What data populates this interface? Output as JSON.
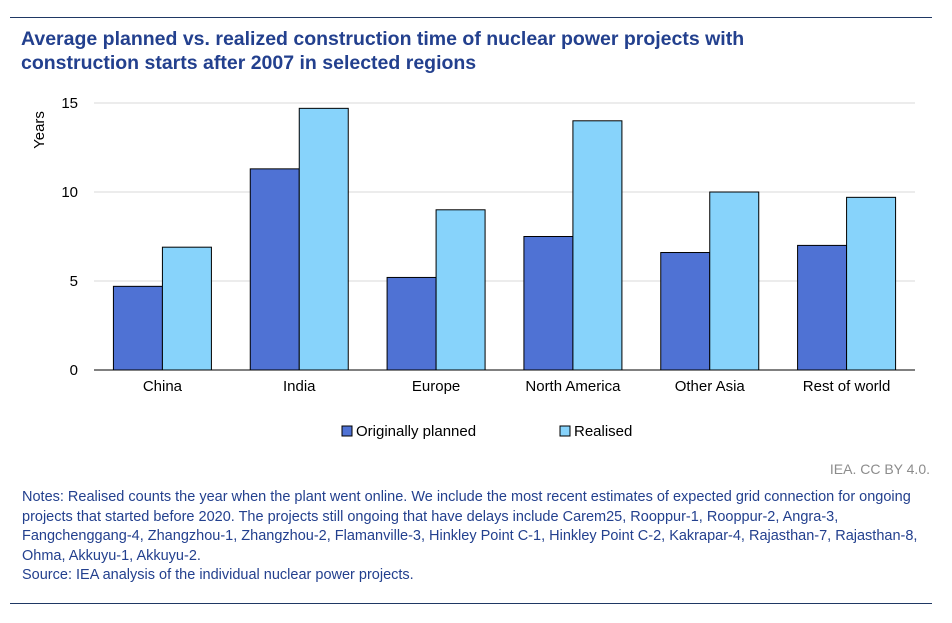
{
  "title_lines": [
    "Average planned vs. realized construction time of nuclear power projects with",
    "construction starts after 2007 in selected regions"
  ],
  "credit": "IEA. CC BY 4.0.",
  "notes": "Notes: Realised counts the year when the plant went online. We include the most recent estimates of expected grid connection for ongoing projects that started before 2020. The projects still ongoing that have delays include Carem25, Rooppur-1, Rooppur-2, Angra-3, Fangchenggang-4, Zhangzhou-1, Zhangzhou-2, Flamanville-3, Hinkley Point C-1, Hinkley Point C-2, Kakrapar-4, Rajasthan-7, Rajasthan-8, Ohma, Akkuyu-1, Akkuyu-2.",
  "source": "Source: IEA analysis of the individual nuclear power projects.",
  "colors": {
    "planned": "#4f72d4",
    "realised": "#87d3fb",
    "rule": "#1f3864",
    "title": "#23408e"
  },
  "chart_data": {
    "type": "bar",
    "title": "Average planned vs. realized construction time of nuclear power projects with construction starts after 2007 in selected regions",
    "ylabel": "Years",
    "xlabel": "",
    "ylim": [
      0,
      15
    ],
    "yticks": [
      0,
      5,
      10,
      15
    ],
    "grid": true,
    "legend": "bottom",
    "categories": [
      "China",
      "India",
      "Europe",
      "North America",
      "Other Asia",
      "Rest of world"
    ],
    "series": [
      {
        "name": "Originally planned",
        "values": [
          4.7,
          11.3,
          5.2,
          7.5,
          6.6,
          7.0
        ]
      },
      {
        "name": "Realised",
        "values": [
          6.9,
          14.7,
          9.0,
          14.0,
          10.0,
          9.7
        ]
      }
    ]
  }
}
